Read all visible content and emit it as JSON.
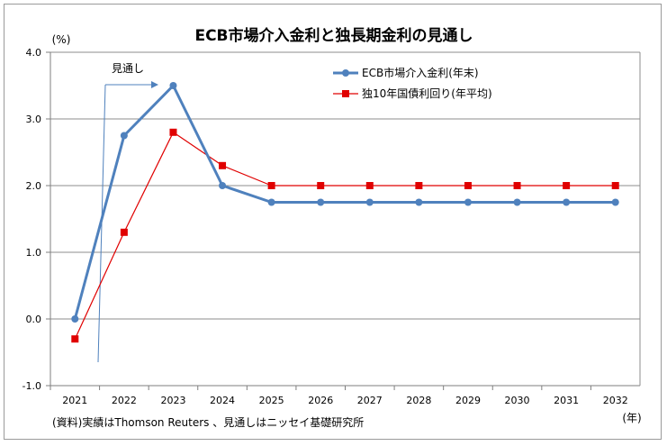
{
  "chart_data": {
    "type": "line",
    "title": "ECB市場介入金利と独長期金利の見通し",
    "ylabel": "(%)",
    "xlabel": "(年)",
    "categories": [
      "2021",
      "2022",
      "2023",
      "2024",
      "2025",
      "2026",
      "2027",
      "2028",
      "2029",
      "2030",
      "2031",
      "2032"
    ],
    "ylim": [
      -1.0,
      4.0
    ],
    "yticks": [
      "4.0",
      "3.0",
      "2.0",
      "1.0",
      "0.0",
      "-1.0"
    ],
    "ytick_values": [
      4.0,
      3.0,
      2.0,
      1.0,
      0.0,
      -1.0
    ],
    "grid": true,
    "legend_position": "top-right",
    "series": [
      {
        "name": "ECB市場介入金利(年末)",
        "color": "#4f81bd",
        "marker": "circle",
        "values": [
          0.0,
          2.75,
          3.5,
          2.0,
          1.75,
          1.75,
          1.75,
          1.75,
          1.75,
          1.75,
          1.75,
          1.75
        ]
      },
      {
        "name": "独10年国債利回り(年平均)",
        "color": "#e00000",
        "marker": "square",
        "values": [
          -0.3,
          1.3,
          2.8,
          2.3,
          2.0,
          2.0,
          2.0,
          2.0,
          2.0,
          2.0,
          2.0,
          2.0
        ]
      }
    ],
    "annotation": "見通し",
    "source": "(資料)実績はThomson Reuters 、見通しはニッセイ基礎研究所"
  }
}
